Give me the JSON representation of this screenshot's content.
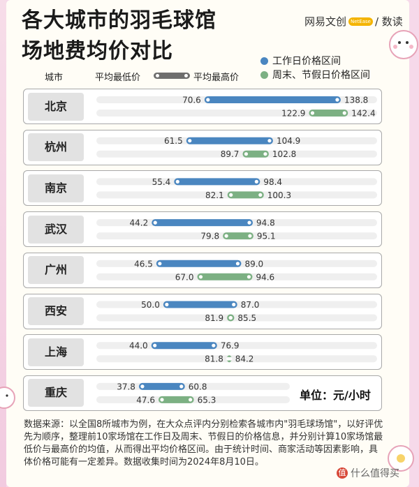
{
  "title_line1": "各大城市的羽毛球馆",
  "title_line2": "场地费均价对比",
  "brand": {
    "name": "网易文创",
    "mark": "NetEase",
    "suffix": "/ 数读"
  },
  "legend": {
    "weekday": "工作日价格区间",
    "weekend": "周末、节假日价格区间",
    "weekday_color": "#4a86c0",
    "weekend_color": "#7cb083"
  },
  "header": {
    "city": "城市",
    "avg_low": "平均最低价",
    "avg_high": "平均最高价"
  },
  "unit": "单位：元/小时",
  "source": "数据来源：以全国8所城市为例，在大众点评内分别检索各城市内\"羽毛球场馆\"，以好评优先为顺序，整理前10家场馆在工作日及周末、节假日的价格信息，并分别计算10家场馆最低价与最高价的均值，从而得出平均价格区间。由于统计时间、商家活动等因素影响，具体价格可能有一定差异。数据收集时间为2024年8月10日。",
  "watermark": "什么值得买",
  "chart_data": {
    "type": "range_bar",
    "categories": [
      "北京",
      "杭州",
      "南京",
      "武汉",
      "广州",
      "西安",
      "上海",
      "重庆"
    ],
    "series": [
      {
        "name": "工作日价格区间",
        "low": [
          70.6,
          61.5,
          55.4,
          44.2,
          46.5,
          50.0,
          44.0,
          37.8
        ],
        "high": [
          138.8,
          104.9,
          98.4,
          94.8,
          89.0,
          87.0,
          76.9,
          60.8
        ]
      },
      {
        "name": "周末、节假日价格区间",
        "low": [
          122.9,
          89.7,
          82.1,
          79.8,
          67.0,
          81.9,
          81.8,
          47.6
        ],
        "high": [
          142.4,
          102.8,
          100.3,
          95.1,
          94.6,
          85.5,
          84.2,
          65.3
        ]
      }
    ],
    "xlim": [
      20,
      150
    ]
  }
}
